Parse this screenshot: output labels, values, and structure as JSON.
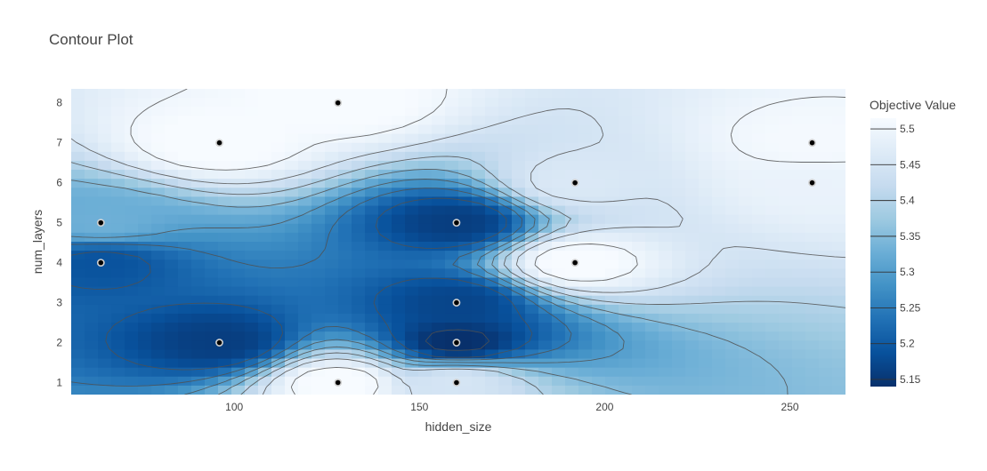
{
  "chart_data": {
    "type": "contour",
    "title": "Contour Plot",
    "xlabel": "hidden_size",
    "ylabel": "num_layers",
    "xlim": [
      56,
      265
    ],
    "ylim": [
      0.7,
      8.35
    ],
    "x_ticks": [
      100,
      150,
      200,
      250
    ],
    "y_ticks": [
      1,
      2,
      3,
      4,
      5,
      6,
      7,
      8
    ],
    "colorbar": {
      "title": "Objective Value",
      "ticks": [
        5.15,
        5.2,
        5.25,
        5.3,
        5.35,
        5.4,
        5.45,
        5.5
      ],
      "range": [
        5.14,
        5.515
      ],
      "colors": [
        "#08306b",
        "#08519c",
        "#2171b5",
        "#4292c6",
        "#6baed6",
        "#9ecae1",
        "#c6dbef",
        "#deebf7",
        "#f7fbff"
      ]
    },
    "trials": [
      {
        "hidden_size": 64,
        "num_layers": 5
      },
      {
        "hidden_size": 64,
        "num_layers": 4
      },
      {
        "hidden_size": 96,
        "num_layers": 7
      },
      {
        "hidden_size": 96,
        "num_layers": 2
      },
      {
        "hidden_size": 128,
        "num_layers": 8
      },
      {
        "hidden_size": 128,
        "num_layers": 1
      },
      {
        "hidden_size": 160,
        "num_layers": 5
      },
      {
        "hidden_size": 160,
        "num_layers": 3
      },
      {
        "hidden_size": 160,
        "num_layers": 2
      },
      {
        "hidden_size": 160,
        "num_layers": 1
      },
      {
        "hidden_size": 192,
        "num_layers": 6
      },
      {
        "hidden_size": 192,
        "num_layers": 4
      },
      {
        "hidden_size": 256,
        "num_layers": 7
      },
      {
        "hidden_size": 256,
        "num_layers": 6
      }
    ],
    "grid_field": {
      "x_range": [
        56,
        265
      ],
      "y_range": [
        0.7,
        8.35
      ],
      "anchors": [
        {
          "x": 64,
          "y": 5,
          "value": 5.33
        },
        {
          "x": 64,
          "y": 4,
          "value": 5.19
        },
        {
          "x": 96,
          "y": 7,
          "value": 5.52
        },
        {
          "x": 96,
          "y": 2,
          "value": 5.16
        },
        {
          "x": 128,
          "y": 8,
          "value": 5.52
        },
        {
          "x": 128,
          "y": 1,
          "value": 5.52
        },
        {
          "x": 160,
          "y": 5,
          "value": 5.16
        },
        {
          "x": 160,
          "y": 3,
          "value": 5.17
        },
        {
          "x": 160,
          "y": 2,
          "value": 5.14
        },
        {
          "x": 160,
          "y": 1,
          "value": 5.45
        },
        {
          "x": 192,
          "y": 6,
          "value": 5.46
        },
        {
          "x": 192,
          "y": 4,
          "value": 5.52
        },
        {
          "x": 256,
          "y": 7,
          "value": 5.51
        },
        {
          "x": 256,
          "y": 6,
          "value": 5.49
        }
      ]
    }
  }
}
